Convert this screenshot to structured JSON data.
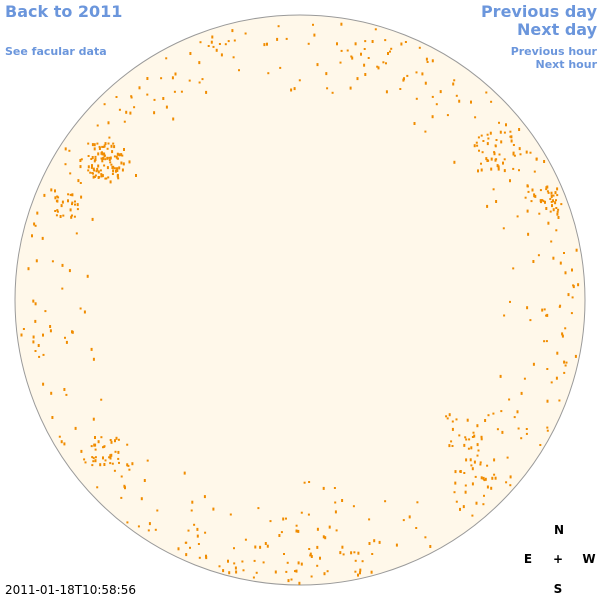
{
  "nav": {
    "back": "Back to 2011",
    "previous_day": "Previous day",
    "next_day": "Next day",
    "facular": "See facular data",
    "previous_hour": "Previous hour",
    "next_hour": "Next hour"
  },
  "timestamp": "2011-01-18T10:58:56",
  "compass": {
    "north": "N",
    "east": "E",
    "center": "+",
    "west": "W",
    "south": "S"
  }
}
